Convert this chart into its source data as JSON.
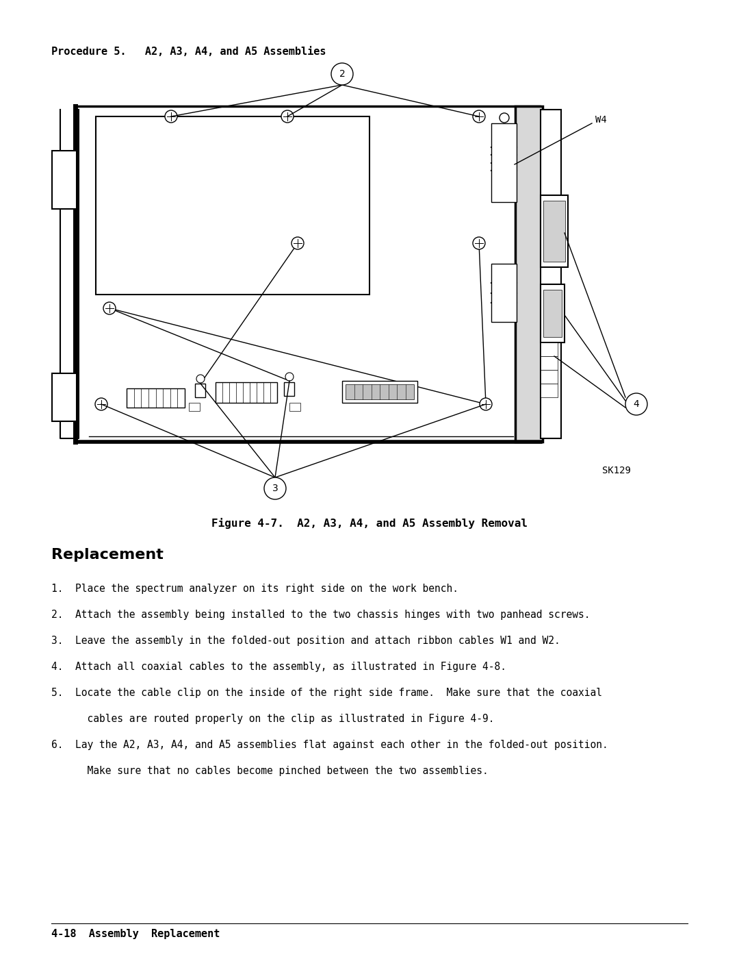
{
  "bg_color": "#ffffff",
  "text_color": "#000000",
  "procedure_header": "Procedure 5.   A2, A3, A4, and A5 Assemblies",
  "figure_caption": "Figure 4-7.  A2, A3, A4, and A5 Assembly Removal",
  "sk_label": "SK129",
  "replacement_header": "Replacement",
  "replacement_items": [
    "1.  Place the spectrum analyzer on its right side on the work bench.",
    "2.  Attach the assembly being installed to the two chassis hinges with two panhead screws.",
    "3.  Leave the assembly in the folded-out position and attach ribbon cables W1 and W2.",
    "4.  Attach all coaxial cables to the assembly, as illustrated in Figure 4-8.",
    "5.  Locate the cable clip on the inside of the right side frame.  Make sure that the coaxial",
    "      cables are routed properly on the clip as illustrated in Figure 4-9.",
    "6.  Lay the A2, A3, A4, and A5 assemblies flat against each other in the folded-out position.",
    "      Make sure that no cables become pinched between the two assemblies."
  ],
  "footer_text": "4-18  Assembly  Replacement"
}
